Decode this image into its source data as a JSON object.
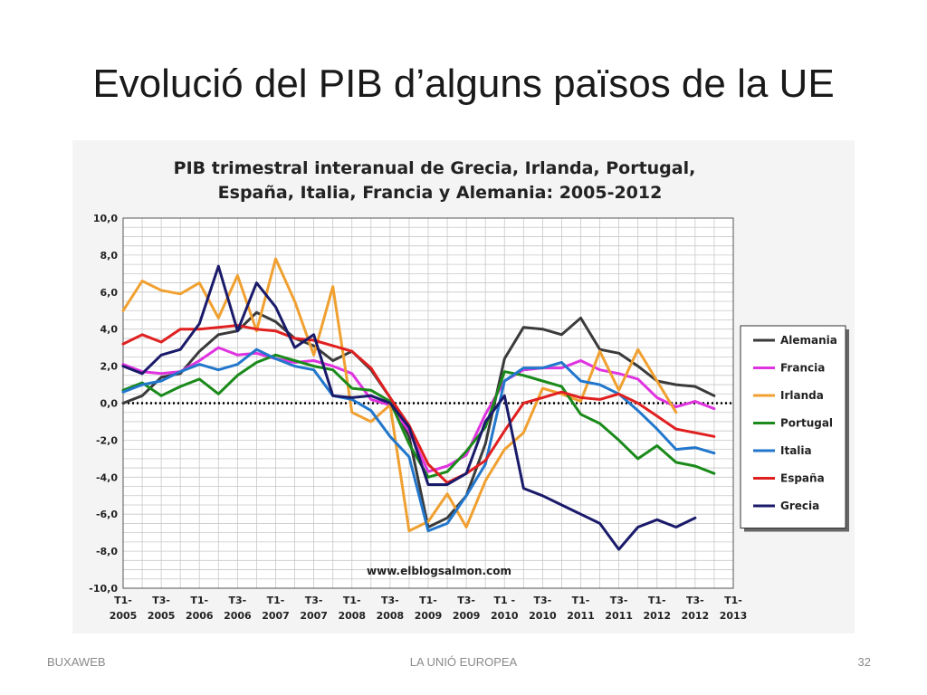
{
  "slide": {
    "title": "Evolució del PIB d’alguns països de la UE",
    "footer_left": "BUXAWEB",
    "footer_center": "LA UNIÓ EUROPEA",
    "footer_right": "32"
  },
  "chart_data": {
    "type": "line",
    "title_line1": "PIB trimestral interanual de Grecia, Irlanda, Portugal,",
    "title_line2": "España, Italia, Francia y Alemania: 2005-2012",
    "watermark": "www.elblogsalmon.com",
    "ylim": [
      -10,
      10
    ],
    "yticks": [
      "10,0",
      "8,0",
      "6,0",
      "4,0",
      "2,0",
      "0,0",
      "-2,0",
      "-4,0",
      "-6,0",
      "-8,0",
      "-10,0"
    ],
    "xticks_top": [
      "T1-",
      "T3-",
      "T1-",
      "T3-",
      "T1-",
      "T3-",
      "T1-",
      "T3-",
      "T1-",
      "T3-",
      "T1 -",
      "T3-",
      "T1-",
      "T3-",
      "T1-",
      "T3-",
      "T1-"
    ],
    "xticks_bottom": [
      "2005",
      "2005",
      "2006",
      "2006",
      "2007",
      "2007",
      "2008",
      "2008",
      "2009",
      "2009",
      "2010",
      "2010",
      "2011",
      "2011",
      "2012",
      "2012",
      "2013"
    ],
    "grid": true,
    "legend_position": "right",
    "series": [
      {
        "name": "Alemania",
        "color": "#3a3a3a",
        "values": [
          0.0,
          0.4,
          1.4,
          1.6,
          2.8,
          3.7,
          3.9,
          4.9,
          4.4,
          3.5,
          3.1,
          2.3,
          2.8,
          1.8,
          0.3,
          -1.8,
          -6.7,
          -6.2,
          -5.0,
          -2.2,
          2.4,
          4.1,
          4.0,
          3.7,
          4.6,
          2.9,
          2.7,
          2.0,
          1.2,
          1.0,
          0.9,
          0.4
        ]
      },
      {
        "name": "Francia",
        "color": "#e033e0",
        "values": [
          2.1,
          1.7,
          1.6,
          1.7,
          2.3,
          3.0,
          2.6,
          2.7,
          2.4,
          2.2,
          2.3,
          2.0,
          1.6,
          0.2,
          -0.1,
          -1.5,
          -3.7,
          -3.4,
          -2.8,
          -0.6,
          1.2,
          1.8,
          1.9,
          1.9,
          2.3,
          1.8,
          1.6,
          1.3,
          0.3,
          -0.2,
          0.1,
          -0.3
        ]
      },
      {
        "name": "Irlanda",
        "color": "#f0a030",
        "values": [
          5.0,
          6.6,
          6.1,
          5.9,
          6.5,
          4.6,
          6.9,
          3.9,
          7.8,
          5.5,
          2.6,
          6.3,
          -0.5,
          -1.0,
          -0.1,
          -6.9,
          -6.4,
          -4.9,
          -6.7,
          -4.2,
          -2.5,
          -1.6,
          0.8,
          0.5,
          0.1,
          2.8,
          0.7,
          2.9,
          1.2,
          -0.5,
          null,
          null
        ]
      },
      {
        "name": "Portugal",
        "color": "#1a8a1a",
        "values": [
          0.7,
          1.1,
          0.4,
          0.9,
          1.3,
          0.5,
          1.5,
          2.2,
          2.6,
          2.3,
          2.0,
          1.8,
          0.8,
          0.7,
          0.1,
          -2.2,
          -4.0,
          -3.7,
          -2.6,
          -1.3,
          1.7,
          1.5,
          1.2,
          0.9,
          -0.6,
          -1.1,
          -2.0,
          -3.0,
          -2.3,
          -3.2,
          -3.4,
          -3.8
        ]
      },
      {
        "name": "Italia",
        "color": "#2277cc",
        "values": [
          0.6,
          1.0,
          1.2,
          1.7,
          2.1,
          1.8,
          2.1,
          2.9,
          2.4,
          2.0,
          1.8,
          0.4,
          0.2,
          -0.4,
          -1.8,
          -2.9,
          -6.9,
          -6.5,
          -5.0,
          -3.3,
          1.2,
          1.9,
          1.9,
          2.2,
          1.2,
          1.0,
          0.5,
          -0.4,
          -1.4,
          -2.5,
          -2.4,
          -2.7
        ]
      },
      {
        "name": "España",
        "color": "#e02020",
        "values": [
          3.2,
          3.7,
          3.3,
          4.0,
          4.0,
          4.1,
          4.2,
          4.0,
          3.9,
          3.5,
          3.4,
          3.1,
          2.8,
          1.9,
          0.3,
          -1.2,
          -3.3,
          -4.3,
          -3.8,
          -3.1,
          -1.5,
          0.0,
          0.3,
          0.6,
          0.3,
          0.2,
          0.5,
          0.0,
          -0.7,
          -1.4,
          -1.6,
          -1.8
        ]
      },
      {
        "name": "Grecia",
        "color": "#1a1a6a",
        "values": [
          2.0,
          1.6,
          2.6,
          2.9,
          4.3,
          7.4,
          3.9,
          6.5,
          5.2,
          3.0,
          3.7,
          0.4,
          0.3,
          0.4,
          0.0,
          -1.3,
          -4.4,
          -4.4,
          -3.8,
          -1.0,
          0.4,
          -4.6,
          -5.0,
          -5.5,
          -6.0,
          -6.5,
          -7.9,
          -6.7,
          -6.3,
          -6.7,
          -6.2,
          null
        ]
      }
    ]
  }
}
